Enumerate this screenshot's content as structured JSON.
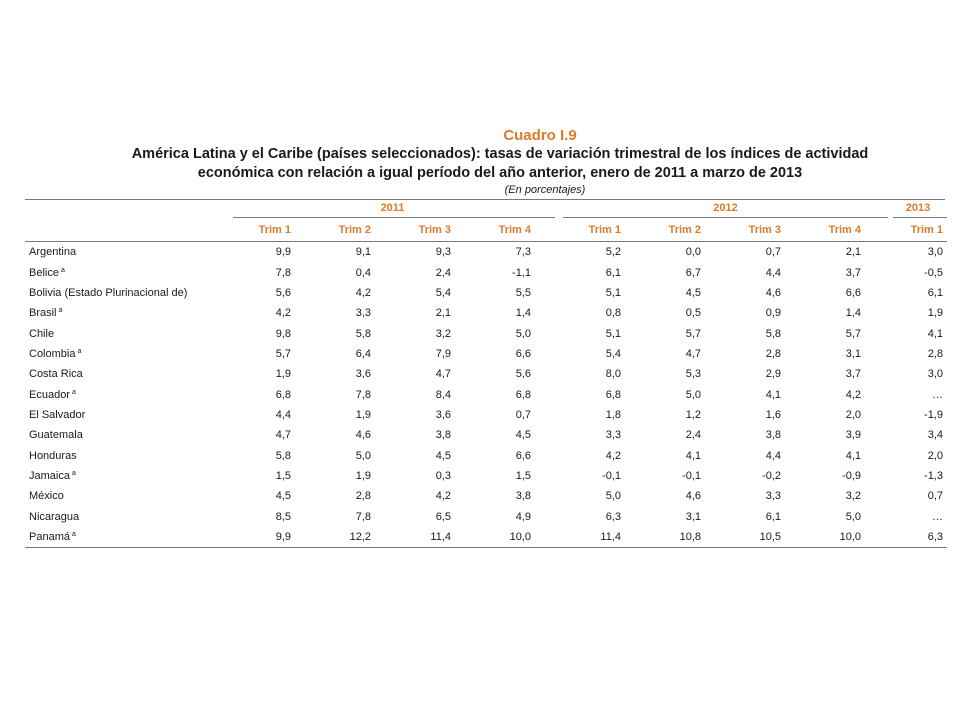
{
  "table": {
    "label": "Cuadro I.9",
    "title_line1": "América Latina y el Caribe (países seleccionados): tasas de variación trimestral de los índices de actividad",
    "title_line2": "económica con relación a igual período del año anterior, enero de 2011 a marzo de 2013",
    "subtitle": "(En porcentajes)",
    "years": [
      "2011",
      "2012",
      "2013"
    ],
    "quarters": [
      "Trim 1",
      "Trim 2",
      "Trim 3",
      "Trim 4"
    ],
    "quarters_2013": [
      "Trim 1"
    ],
    "footnote_mark": "a",
    "rows": [
      {
        "country": "Argentina",
        "note": "",
        "v2011": [
          "9,9",
          "9,1",
          "9,3",
          "7,3"
        ],
        "v2012": [
          "5,2",
          "0,0",
          "0,7",
          "2,1"
        ],
        "v2013": "3,0"
      },
      {
        "country": "Belice",
        "note": "a",
        "v2011": [
          "7,8",
          "0,4",
          "2,4",
          "-1,1"
        ],
        "v2012": [
          "6,1",
          "6,7",
          "4,4",
          "3,7"
        ],
        "v2013": "-0,5"
      },
      {
        "country": "Bolivia (Estado Plurinacional de)",
        "note": "",
        "v2011": [
          "5,6",
          "4,2",
          "5,4",
          "5,5"
        ],
        "v2012": [
          "5,1",
          "4,5",
          "4,6",
          "6,6"
        ],
        "v2013": "6,1"
      },
      {
        "country": "Brasil",
        "note": "a",
        "v2011": [
          "4,2",
          "3,3",
          "2,1",
          "1,4"
        ],
        "v2012": [
          "0,8",
          "0,5",
          "0,9",
          "1,4"
        ],
        "v2013": "1,9"
      },
      {
        "country": "Chile",
        "note": "",
        "v2011": [
          "9,8",
          "5,8",
          "3,2",
          "5,0"
        ],
        "v2012": [
          "5,1",
          "5,7",
          "5,8",
          "5,7"
        ],
        "v2013": "4,1"
      },
      {
        "country": "Colombia",
        "note": "a",
        "v2011": [
          "5,7",
          "6,4",
          "7,9",
          "6,6"
        ],
        "v2012": [
          "5,4",
          "4,7",
          "2,8",
          "3,1"
        ],
        "v2013": "2,8"
      },
      {
        "country": "Costa Rica",
        "note": "",
        "v2011": [
          "1,9",
          "3,6",
          "4,7",
          "5,6"
        ],
        "v2012": [
          "8,0",
          "5,3",
          "2,9",
          "3,7"
        ],
        "v2013": "3,0"
      },
      {
        "country": "Ecuador",
        "note": "a",
        "v2011": [
          "6,8",
          "7,8",
          "8,4",
          "6,8"
        ],
        "v2012": [
          "6,8",
          "5,0",
          "4,1",
          "4,2"
        ],
        "v2013": "…"
      },
      {
        "country": "El Salvador",
        "note": "",
        "v2011": [
          "4,4",
          "1,9",
          "3,6",
          "0,7"
        ],
        "v2012": [
          "1,8",
          "1,2",
          "1,6",
          "2,0"
        ],
        "v2013": "-1,9"
      },
      {
        "country": "Guatemala",
        "note": "",
        "v2011": [
          "4,7",
          "4,6",
          "3,8",
          "4,5"
        ],
        "v2012": [
          "3,3",
          "2,4",
          "3,8",
          "3,9"
        ],
        "v2013": "3,4"
      },
      {
        "country": "Honduras",
        "note": "",
        "v2011": [
          "5,8",
          "5,0",
          "4,5",
          "6,6"
        ],
        "v2012": [
          "4,2",
          "4,1",
          "4,4",
          "4,1"
        ],
        "v2013": "2,0"
      },
      {
        "country": "Jamaica",
        "note": "a",
        "v2011": [
          "1,5",
          "1,9",
          "0,3",
          "1,5"
        ],
        "v2012": [
          "-0,1",
          "-0,1",
          "-0,2",
          "-0,9"
        ],
        "v2013": "-1,3"
      },
      {
        "country": "México",
        "note": "",
        "v2011": [
          "4,5",
          "2,8",
          "4,2",
          "3,8"
        ],
        "v2012": [
          "5,0",
          "4,6",
          "3,3",
          "3,2"
        ],
        "v2013": "0,7"
      },
      {
        "country": "Nicaragua",
        "note": "",
        "v2011": [
          "8,5",
          "7,8",
          "6,5",
          "4,9"
        ],
        "v2012": [
          "6,3",
          "3,1",
          "6,1",
          "5,0"
        ],
        "v2013": "…"
      },
      {
        "country": "Panamá",
        "note": "a",
        "v2011": [
          "9,9",
          "12,2",
          "11,4",
          "10,0"
        ],
        "v2012": [
          "11,4",
          "10,8",
          "10,5",
          "10,0"
        ],
        "v2013": "6,3"
      }
    ]
  },
  "colors": {
    "accent": "#e07a28",
    "rule": "#7a7a7a",
    "text": "#1a1a1a"
  }
}
